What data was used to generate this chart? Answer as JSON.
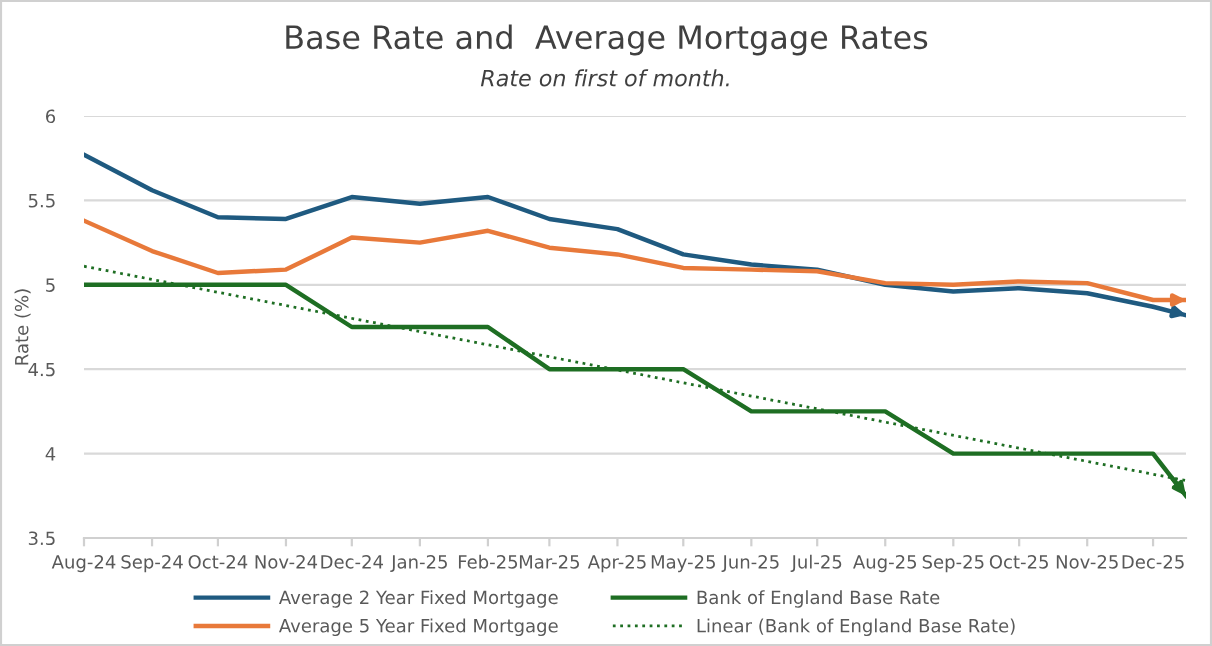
{
  "chart_data": {
    "type": "line",
    "title": "Base Rate and  Average Mortgage Rates",
    "subtitle": "Rate on first of month.",
    "ylabel": "Rate (%)",
    "x": [
      "2024-08-01",
      "2024-09-01",
      "2024-10-01",
      "2024-11-01",
      "2024-12-01",
      "2025-01-01",
      "2025-02-01",
      "2025-03-01",
      "2025-04-01",
      "2025-05-01",
      "2025-06-01",
      "2025-07-01",
      "2025-08-01",
      "2025-09-01",
      "2025-10-01",
      "2025-11-01",
      "2025-12-01",
      "2025-12-16"
    ],
    "series": [
      {
        "name": "Average 2 Year Fixed Mortgage",
        "color": "#1f5a80",
        "values": [
          5.77,
          5.56,
          5.4,
          5.39,
          5.52,
          5.48,
          5.52,
          5.39,
          5.33,
          5.18,
          5.12,
          5.09,
          5.0,
          4.96,
          4.98,
          4.95,
          4.87,
          4.82
        ]
      },
      {
        "name": "Average 5 Year Fixed Mortgage",
        "color": "#e8793a",
        "values": [
          5.38,
          5.2,
          5.07,
          5.09,
          5.28,
          5.25,
          5.32,
          5.22,
          5.18,
          5.1,
          5.09,
          5.08,
          5.01,
          5.0,
          5.02,
          5.01,
          4.91,
          4.91
        ]
      },
      {
        "name": "Bank of England Base Rate",
        "color": "#1e6e23",
        "values": [
          5.0,
          5.0,
          5.0,
          5.0,
          4.75,
          4.75,
          4.75,
          4.5,
          4.5,
          4.5,
          4.25,
          4.25,
          4.25,
          4.0,
          4.0,
          4.0,
          4.0,
          3.75
        ]
      },
      {
        "name": "Linear (Bank of England Base Rate)",
        "color": "#1e6e23",
        "line_style": "dotted",
        "x": [
          "2024-08-01",
          "2025-12-16"
        ],
        "values": [
          5.11,
          3.84
        ]
      }
    ],
    "xlim": [
      "2024-08-01",
      "2025-12-16"
    ],
    "xticks": [
      {
        "value": "2024-08-01",
        "label": "Aug-24"
      },
      {
        "value": "2024-09-01",
        "label": "Sep-24"
      },
      {
        "value": "2024-10-01",
        "label": "Oct-24"
      },
      {
        "value": "2024-11-01",
        "label": "Nov-24"
      },
      {
        "value": "2024-12-01",
        "label": "Dec-24"
      },
      {
        "value": "2025-01-01",
        "label": "Jan-25"
      },
      {
        "value": "2025-02-01",
        "label": "Feb-25"
      },
      {
        "value": "2025-03-01",
        "label": "Mar-25"
      },
      {
        "value": "2025-04-01",
        "label": "Apr-25"
      },
      {
        "value": "2025-05-01",
        "label": "May-25"
      },
      {
        "value": "2025-06-01",
        "label": "Jun-25"
      },
      {
        "value": "2025-07-01",
        "label": "Jul-25"
      },
      {
        "value": "2025-08-01",
        "label": "Aug-25"
      },
      {
        "value": "2025-09-01",
        "label": "Sep-25"
      },
      {
        "value": "2025-10-01",
        "label": "Oct-25"
      },
      {
        "value": "2025-11-01",
        "label": "Nov-25"
      },
      {
        "value": "2025-12-01",
        "label": "Dec-25"
      }
    ],
    "ylim": [
      3.5,
      6
    ],
    "yticks": [
      3.5,
      4,
      4.5,
      5,
      5.5,
      6
    ],
    "grid": "y",
    "legend": "bottom",
    "marker": "none",
    "line_style": "solid"
  }
}
